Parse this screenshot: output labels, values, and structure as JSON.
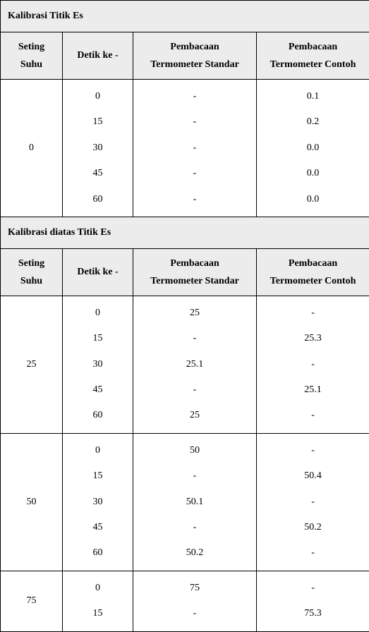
{
  "section1": {
    "title": "Kalibrasi Titik Es",
    "headers": {
      "col0a": "Seting",
      "col0b": "Suhu",
      "col1": "Detik ke -",
      "col2a": "Pembacaan",
      "col2b": "Termometer Standar",
      "col3a": "Pembacaan",
      "col3b": "Termometer Contoh"
    },
    "group": {
      "seting": "0",
      "times": [
        "0",
        "15",
        "30",
        "45",
        "60"
      ],
      "standar": [
        "-",
        "-",
        "-",
        "-",
        "-"
      ],
      "contoh": [
        "0.1",
        "0.2",
        "0.0",
        "0.0",
        "0.0"
      ]
    }
  },
  "section2": {
    "title": "Kalibrasi diatas Titik Es",
    "headers": {
      "col0a": "Seting",
      "col0b": "Suhu",
      "col1": "Detik ke -",
      "col2a": "Pembacaan",
      "col2b": "Termometer Standar",
      "col3a": "Pembacaan",
      "col3b": "Termometer Contoh"
    },
    "groups": [
      {
        "seting": "25",
        "times": [
          "0",
          "15",
          "30",
          "45",
          "60"
        ],
        "standar": [
          "25",
          "-",
          "25.1",
          "-",
          "25"
        ],
        "contoh": [
          "-",
          "25.3",
          "-",
          "25.1",
          "-"
        ]
      },
      {
        "seting": "50",
        "times": [
          "0",
          "15",
          "30",
          "45",
          "60"
        ],
        "standar": [
          "50",
          "-",
          "50.1",
          "-",
          "50.2"
        ],
        "contoh": [
          "-",
          "50.4",
          "-",
          "50.2",
          "-"
        ]
      },
      {
        "seting": "75",
        "times": [
          "0",
          "15"
        ],
        "standar": [
          "75",
          "-"
        ],
        "contoh": [
          "-",
          "75.3"
        ]
      }
    ]
  }
}
